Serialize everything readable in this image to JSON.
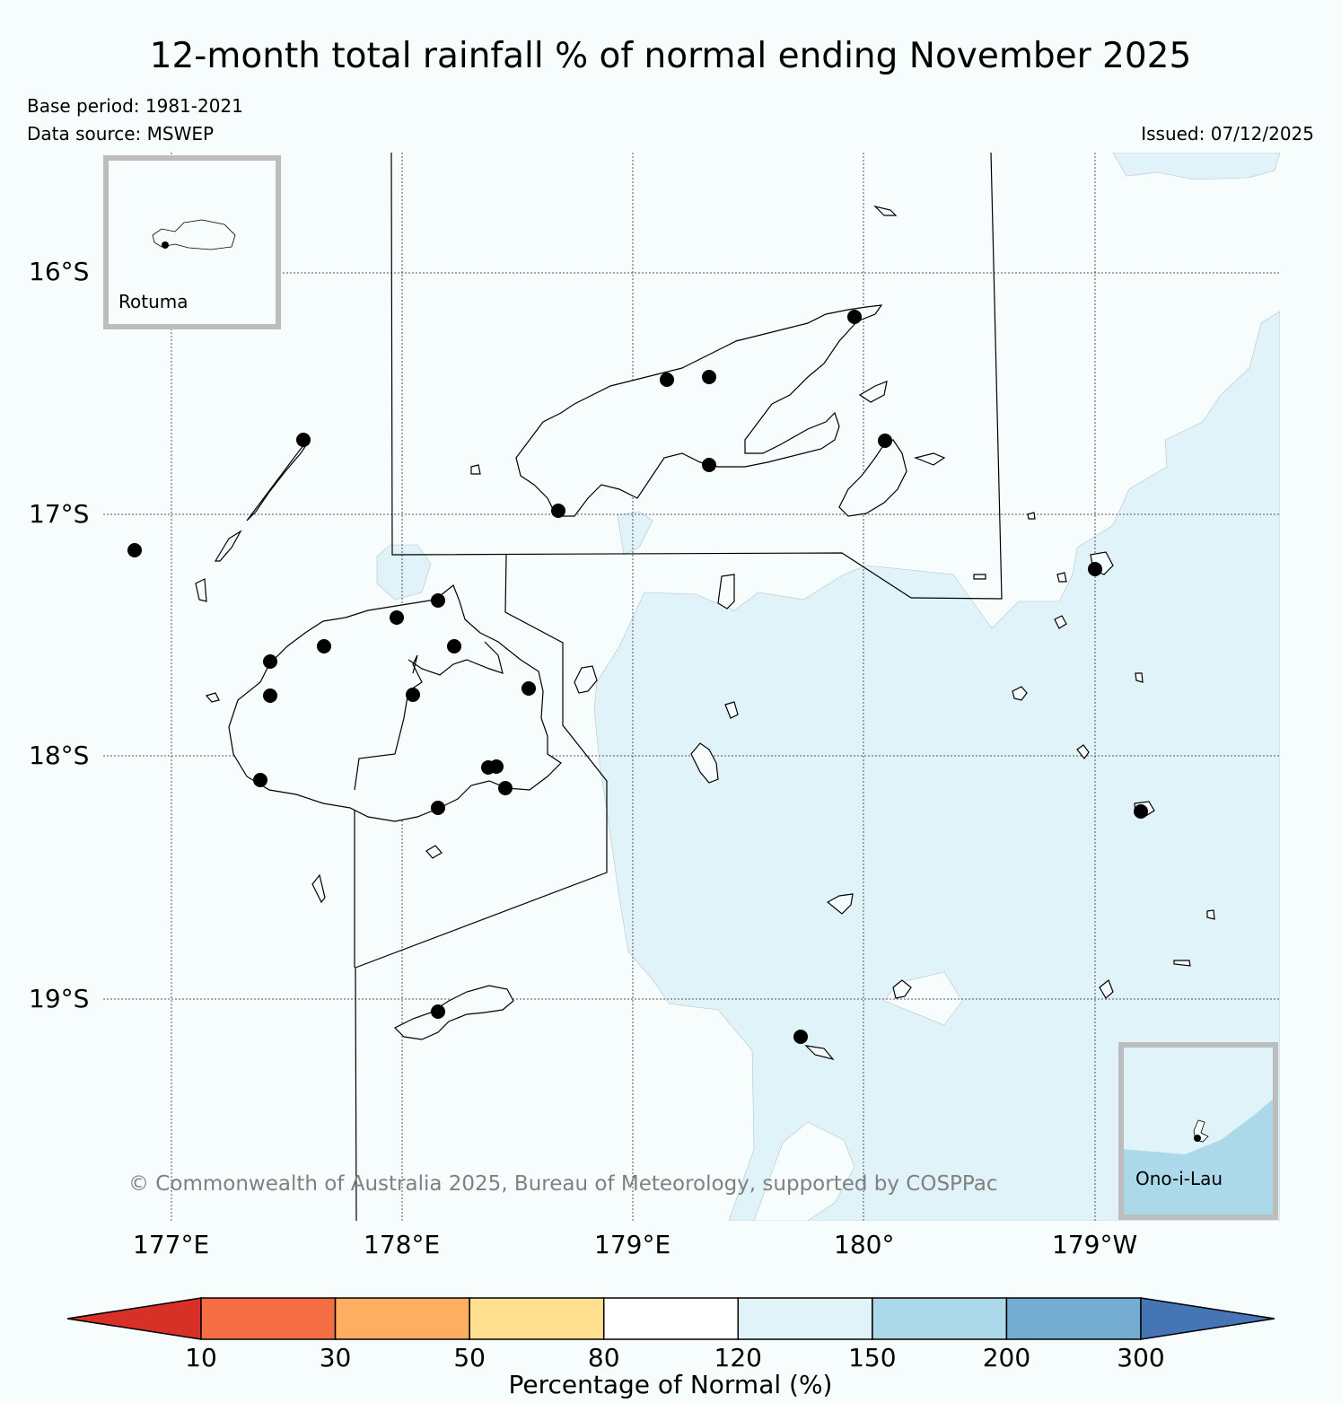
{
  "title": "12-month total rainfall % of normal ending November 2025",
  "base_period": "Base period: 1981-2021",
  "data_source": "Data source: MSWEP",
  "issued": "Issued: 07/12/2025",
  "copyright": "© Commonwealth of Australia 2025, Bureau of Meteorology, supported by COSPPac",
  "lat_labels": [
    "16°S",
    "17°S",
    "18°S",
    "19°S"
  ],
  "lon_labels": [
    "177°E",
    "178°E",
    "179°E",
    "180°",
    "179°W"
  ],
  "insets": {
    "rotuma": "Rotuma",
    "ono": "Ono-i-Lau"
  },
  "colorbar": {
    "label": "Percentage of Normal (%)",
    "ticks": [
      "10",
      "30",
      "50",
      "80",
      "120",
      "150",
      "200",
      "300"
    ],
    "colors": [
      "#d73027",
      "#f46d43",
      "#fdae61",
      "#fee090",
      "#ffffff",
      "#e0f3f8",
      "#abd9e9",
      "#74add1",
      "#4575b4"
    ]
  },
  "legend_colors": {
    "background": "#f7fcfd",
    "band_120_150": "#e0f3f8",
    "band_150_200": "#abd9e9",
    "station": "#000000"
  }
}
